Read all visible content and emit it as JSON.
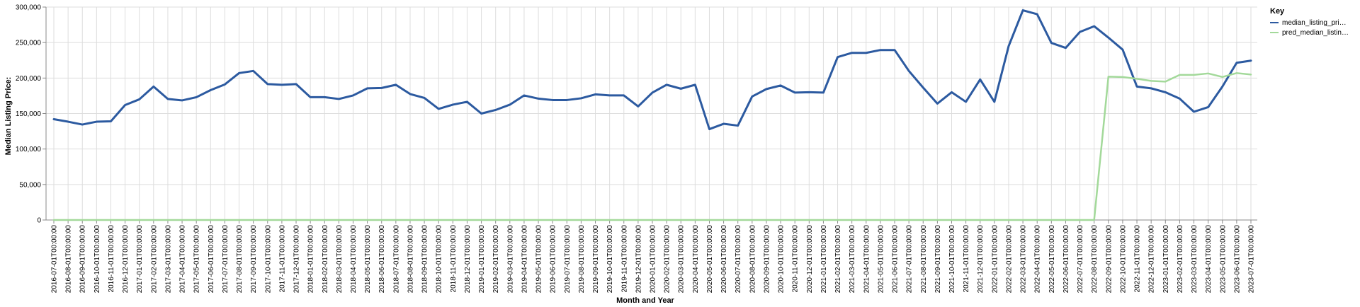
{
  "chart_data": {
    "type": "line",
    "xlabel": "Month and Year",
    "ylabel": "Median Listing Price:",
    "ylim": [
      0,
      300000
    ],
    "yticks": [
      "0",
      "50,000",
      "100,000",
      "150,000",
      "200,000",
      "250,000",
      "300,000"
    ],
    "grid": true,
    "legend": {
      "title": "Key",
      "placement": "top-right",
      "entries": [
        "median_listing_pri…",
        "pred_median_listin…"
      ]
    },
    "x": [
      "2016-07-01T00:00:00",
      "2016-08-01T00:00:00",
      "2016-09-01T00:00:00",
      "2016-10-01T00:00:00",
      "2016-11-01T00:00:00",
      "2016-12-01T00:00:00",
      "2017-01-01T00:00:00",
      "2017-02-01T00:00:00",
      "2017-03-01T00:00:00",
      "2017-04-01T00:00:00",
      "2017-05-01T00:00:00",
      "2017-06-01T00:00:00",
      "2017-07-01T00:00:00",
      "2017-08-01T00:00:00",
      "2017-09-01T00:00:00",
      "2017-10-01T00:00:00",
      "2017-11-01T00:00:00",
      "2017-12-01T00:00:00",
      "2018-01-01T00:00:00",
      "2018-02-01T00:00:00",
      "2018-03-01T00:00:00",
      "2018-04-01T00:00:00",
      "2018-05-01T00:00:00",
      "2018-06-01T00:00:00",
      "2018-07-01T00:00:00",
      "2018-08-01T00:00:00",
      "2018-09-01T00:00:00",
      "2018-10-01T00:00:00",
      "2018-11-01T00:00:00",
      "2018-12-01T00:00:00",
      "2019-01-01T00:00:00",
      "2019-02-01T00:00:00",
      "2019-03-01T00:00:00",
      "2019-04-01T00:00:00",
      "2019-05-01T00:00:00",
      "2019-06-01T00:00:00",
      "2019-07-01T00:00:00",
      "2019-08-01T00:00:00",
      "2019-09-01T00:00:00",
      "2019-10-01T00:00:00",
      "2019-11-01T00:00:00",
      "2019-12-01T00:00:00",
      "2020-01-01T00:00:00",
      "2020-02-01T00:00:00",
      "2020-03-01T00:00:00",
      "2020-04-01T00:00:00",
      "2020-05-01T00:00:00",
      "2020-06-01T00:00:00",
      "2020-07-01T00:00:00",
      "2020-08-01T00:00:00",
      "2020-09-01T00:00:00",
      "2020-10-01T00:00:00",
      "2020-11-01T00:00:00",
      "2020-12-01T00:00:00",
      "2021-01-01T00:00:00",
      "2021-02-01T00:00:00",
      "2021-03-01T00:00:00",
      "2021-04-01T00:00:00",
      "2021-05-01T00:00:00",
      "2021-06-01T00:00:00",
      "2021-07-01T00:00:00",
      "2021-08-01T00:00:00",
      "2021-09-01T00:00:00",
      "2021-10-01T00:00:00",
      "2021-11-01T00:00:00",
      "2021-12-01T00:00:00",
      "2022-01-01T00:00:00",
      "2022-02-01T00:00:00",
      "2022-03-01T00:00:00",
      "2022-04-01T00:00:00",
      "2022-05-01T00:00:00",
      "2022-06-01T00:00:00",
      "2022-07-01T00:00:00",
      "2022-08-01T00:00:00",
      "2022-09-01T00:00:00",
      "2022-10-01T00:00:00",
      "2022-11-01T00:00:00",
      "2022-12-01T00:00:00",
      "2023-01-01T00:00:00",
      "2023-02-01T00:00:00",
      "2023-03-01T00:00:00",
      "2023-04-01T00:00:00",
      "2023-05-01T00:00:00",
      "2023-06-01T00:00:00",
      "2023-07-01T00:00:00"
    ],
    "series": [
      {
        "name": "median_listing_pri…",
        "color": "#2c5aa0",
        "values": [
          142000,
          138500,
          134500,
          138500,
          139000,
          162000,
          170000,
          188000,
          170500,
          168500,
          173000,
          183000,
          191000,
          207000,
          210000,
          191500,
          190500,
          191500,
          173000,
          173000,
          170500,
          175500,
          185500,
          186000,
          190500,
          177500,
          172000,
          156500,
          162500,
          166500,
          150000,
          155000,
          162500,
          175500,
          171000,
          169000,
          169000,
          171500,
          177000,
          175500,
          175500,
          160000,
          179500,
          190500,
          185000,
          190500,
          128000,
          135500,
          133000,
          174000,
          184500,
          189500,
          179500,
          180000,
          179500,
          229500,
          235500,
          235500,
          239500,
          239500,
          210000,
          186500,
          164000,
          180000,
          166500,
          198000,
          166500,
          245000,
          295500,
          290000,
          249500,
          242500,
          265000,
          273000,
          257000,
          240000,
          188000,
          185500,
          180000,
          171000,
          152500,
          159000,
          188000,
          221500,
          224500
        ]
      },
      {
        "name": "pred_median_listin…",
        "color": "#a3d99a",
        "values": [
          0,
          0,
          0,
          0,
          0,
          0,
          0,
          0,
          0,
          0,
          0,
          0,
          0,
          0,
          0,
          0,
          0,
          0,
          0,
          0,
          0,
          0,
          0,
          0,
          0,
          0,
          0,
          0,
          0,
          0,
          0,
          0,
          0,
          0,
          0,
          0,
          0,
          0,
          0,
          0,
          0,
          0,
          0,
          0,
          0,
          0,
          0,
          0,
          0,
          0,
          0,
          0,
          0,
          0,
          0,
          0,
          0,
          0,
          0,
          0,
          0,
          0,
          0,
          0,
          0,
          0,
          0,
          0,
          0,
          0,
          0,
          0,
          0,
          0,
          202000,
          201500,
          199000,
          196000,
          195000,
          204500,
          204500,
          206500,
          201500,
          207000,
          205000
        ]
      }
    ]
  }
}
